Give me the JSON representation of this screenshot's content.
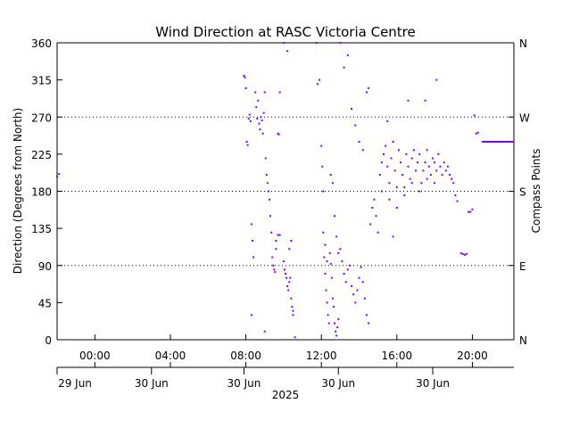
{
  "chart_data": {
    "type": "scatter",
    "title": "Wind Direction at RASC Victoria Centre",
    "ylabel": "Direction (Degrees from North)",
    "y2label": "Compass Points",
    "ylim": [
      0,
      360
    ],
    "xlim_hours": [
      -2.0,
      22.2
    ],
    "y_ticks": [
      0,
      45,
      90,
      135,
      180,
      225,
      270,
      315,
      360
    ],
    "compass_ticks": [
      {
        "value": 0,
        "label": "N"
      },
      {
        "value": 90,
        "label": "E"
      },
      {
        "value": 180,
        "label": "S"
      },
      {
        "value": 270,
        "label": "W"
      },
      {
        "value": 360,
        "label": "N"
      }
    ],
    "gridlines": [
      90,
      180,
      270
    ],
    "time_ticks": [
      {
        "hour": 0,
        "label": "00:00"
      },
      {
        "hour": 4,
        "label": "04:00"
      },
      {
        "hour": 8,
        "label": "08:00"
      },
      {
        "hour": 12,
        "label": "12:00"
      },
      {
        "hour": 16,
        "label": "16:00"
      },
      {
        "hour": 20,
        "label": "20:00"
      }
    ],
    "date_labels": [
      {
        "hour": -2,
        "label": "29 Jun"
      },
      {
        "hour": 3,
        "label": "30 Jun"
      },
      {
        "hour": 7.9,
        "label": "30 Jun"
      },
      {
        "hour": 12.9,
        "label": "30 Jun"
      },
      {
        "hour": 17.9,
        "label": "30 Jun"
      }
    ],
    "year_label": "2025",
    "series": [
      {
        "color": "#7b00ff",
        "points": [
          [
            -2.0,
            198
          ],
          [
            -1.9,
            201
          ],
          [
            7.9,
            320
          ],
          [
            7.95,
            318
          ],
          [
            8.0,
            305
          ],
          [
            8.05,
            240
          ],
          [
            8.1,
            236
          ],
          [
            8.15,
            268
          ],
          [
            8.2,
            273
          ],
          [
            8.25,
            265
          ],
          [
            8.3,
            140
          ],
          [
            8.35,
            120
          ],
          [
            8.4,
            100
          ],
          [
            8.3,
            30
          ],
          [
            8.5,
            300
          ],
          [
            8.55,
            282
          ],
          [
            8.6,
            268
          ],
          [
            8.65,
            290
          ],
          [
            8.7,
            262
          ],
          [
            8.75,
            255
          ],
          [
            8.8,
            270
          ],
          [
            8.85,
            266
          ],
          [
            8.9,
            250
          ],
          [
            8.95,
            275
          ],
          [
            9.0,
            300
          ],
          [
            9.05,
            220
          ],
          [
            9.1,
            200
          ],
          [
            9.15,
            190
          ],
          [
            9.2,
            180
          ],
          [
            9.25,
            170
          ],
          [
            9.3,
            150
          ],
          [
            9.35,
            130
          ],
          [
            9.4,
            100
          ],
          [
            9.45,
            90
          ],
          [
            9.5,
            85
          ],
          [
            9.55,
            82
          ],
          [
            9.6,
            110
          ],
          [
            9.0,
            10
          ],
          [
            9.7,
            250
          ],
          [
            9.75,
            249
          ],
          [
            9.8,
            300
          ],
          [
            9.6,
            120
          ],
          [
            9.7,
            127
          ],
          [
            9.8,
            127
          ],
          [
            10.0,
            95
          ],
          [
            10.05,
            85
          ],
          [
            10.1,
            80
          ],
          [
            10.15,
            75
          ],
          [
            10.2,
            65
          ],
          [
            10.25,
            60
          ],
          [
            10.3,
            70
          ],
          [
            10.35,
            75
          ],
          [
            10.4,
            50
          ],
          [
            10.45,
            40
          ],
          [
            10.5,
            35
          ],
          [
            10.3,
            110
          ],
          [
            10.4,
            120
          ],
          [
            10.5,
            30
          ],
          [
            10.6,
            3
          ],
          [
            10.0,
            360
          ],
          [
            10.2,
            350
          ],
          [
            11.75,
            360
          ],
          [
            11.8,
            310
          ],
          [
            11.9,
            315
          ],
          [
            12.0,
            235
          ],
          [
            12.05,
            210
          ],
          [
            12.1,
            180
          ],
          [
            12.15,
            100
          ],
          [
            12.2,
            80
          ],
          [
            12.25,
            60
          ],
          [
            12.3,
            45
          ],
          [
            12.35,
            30
          ],
          [
            12.4,
            20
          ],
          [
            12.1,
            130
          ],
          [
            12.2,
            115
          ],
          [
            12.3,
            95
          ],
          [
            12.45,
            105
          ],
          [
            12.5,
            92
          ],
          [
            12.55,
            75
          ],
          [
            12.6,
            50
          ],
          [
            12.65,
            40
          ],
          [
            12.7,
            20
          ],
          [
            12.75,
            10
          ],
          [
            12.8,
            5
          ],
          [
            12.85,
            15
          ],
          [
            12.9,
            25
          ],
          [
            12.5,
            200
          ],
          [
            12.6,
            190
          ],
          [
            12.7,
            150
          ],
          [
            12.8,
            125
          ],
          [
            12.9,
            105
          ],
          [
            13.0,
            110
          ],
          [
            13.1,
            95
          ],
          [
            13.2,
            80
          ],
          [
            13.3,
            70
          ],
          [
            13.4,
            85
          ],
          [
            13.5,
            90
          ],
          [
            13.6,
            65
          ],
          [
            13.7,
            55
          ],
          [
            13.8,
            45
          ],
          [
            13.9,
            60
          ],
          [
            14.0,
            75
          ],
          [
            14.1,
            88
          ],
          [
            14.2,
            70
          ],
          [
            14.3,
            50
          ],
          [
            14.4,
            30
          ],
          [
            14.5,
            20
          ],
          [
            13.0,
            360
          ],
          [
            13.2,
            330
          ],
          [
            13.4,
            345
          ],
          [
            13.6,
            280
          ],
          [
            13.8,
            260
          ],
          [
            14.0,
            240
          ],
          [
            14.2,
            230
          ],
          [
            14.4,
            300
          ],
          [
            14.5,
            305
          ],
          [
            14.6,
            140
          ],
          [
            14.7,
            160
          ],
          [
            14.8,
            170
          ],
          [
            14.9,
            150
          ],
          [
            15.0,
            130
          ],
          [
            15.1,
            200
          ],
          [
            15.2,
            215
          ],
          [
            15.3,
            225
          ],
          [
            15.4,
            235
          ],
          [
            15.5,
            210
          ],
          [
            15.6,
            190
          ],
          [
            15.7,
            220
          ],
          [
            15.8,
            240
          ],
          [
            15.9,
            205
          ],
          [
            16.0,
            185
          ],
          [
            16.1,
            230
          ],
          [
            16.2,
            215
          ],
          [
            16.3,
            200
          ],
          [
            16.4,
            175
          ],
          [
            16.5,
            225
          ],
          [
            16.6,
            210
          ],
          [
            16.7,
            195
          ],
          [
            16.8,
            220
          ],
          [
            16.9,
            230
          ],
          [
            17.0,
            205
          ],
          [
            17.1,
            215
          ],
          [
            17.2,
            225
          ],
          [
            17.3,
            190
          ],
          [
            17.4,
            205
          ],
          [
            17.5,
            215
          ],
          [
            17.6,
            230
          ],
          [
            17.7,
            210
          ],
          [
            17.8,
            200
          ],
          [
            17.9,
            220
          ],
          [
            18.0,
            215
          ],
          [
            18.1,
            205
          ],
          [
            18.2,
            225
          ],
          [
            18.3,
            210
          ],
          [
            18.4,
            200
          ],
          [
            18.5,
            215
          ],
          [
            18.6,
            205
          ],
          [
            18.7,
            210
          ],
          [
            18.8,
            200
          ],
          [
            18.9,
            195
          ],
          [
            19.0,
            190
          ],
          [
            19.1,
            175
          ],
          [
            19.2,
            168
          ],
          [
            15.2,
            180
          ],
          [
            15.6,
            170
          ],
          [
            16.0,
            160
          ],
          [
            16.4,
            185
          ],
          [
            16.8,
            190
          ],
          [
            17.2,
            180
          ],
          [
            17.6,
            195
          ],
          [
            18.0,
            190
          ],
          [
            15.8,
            125
          ],
          [
            16.6,
            290
          ],
          [
            17.5,
            290
          ],
          [
            15.5,
            265
          ],
          [
            18.1,
            315
          ],
          [
            19.4,
            105
          ],
          [
            19.5,
            104
          ],
          [
            19.6,
            103
          ],
          [
            19.7,
            104
          ],
          [
            19.8,
            155
          ],
          [
            19.9,
            155
          ],
          [
            20.0,
            158
          ],
          [
            20.1,
            272
          ],
          [
            20.2,
            250
          ],
          [
            20.3,
            251
          ]
        ],
        "run": {
          "x0": 20.5,
          "x1": 22.2,
          "y": 240
        }
      }
    ]
  }
}
